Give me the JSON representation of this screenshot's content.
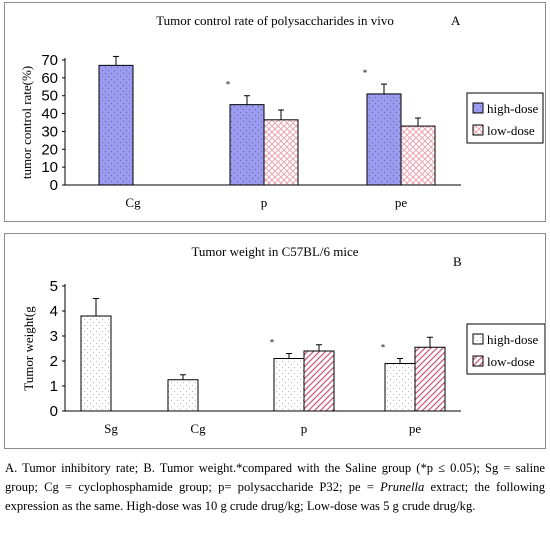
{
  "chart_data": [
    {
      "type": "bar",
      "title": "Tumor control rate of polysaccharides in vivo",
      "panel_label": "A",
      "ylabel": "tumor control rate(%)",
      "ylim": [
        0,
        70
      ],
      "yticks": [
        0,
        10,
        20,
        30,
        40,
        50,
        60,
        70
      ],
      "categories": [
        "Cg",
        "p",
        "pe"
      ],
      "legend_position": "right",
      "series": [
        {
          "name": "high-dose",
          "color": "#9b9cf1",
          "pattern": "dots",
          "values": [
            67,
            45,
            51
          ],
          "errors": [
            5,
            5,
            5.5
          ]
        },
        {
          "name": "low-dose",
          "color": "#e9a7b3",
          "pattern": "crosshatch",
          "values": [
            null,
            36.5,
            33
          ],
          "errors": [
            null,
            5.5,
            4.5
          ]
        }
      ],
      "significance": [
        "",
        "*",
        "*"
      ]
    },
    {
      "type": "bar",
      "title": "Tumor weight in C57BL/6 mice",
      "panel_label": "B",
      "ylabel": "Tumor weight(g",
      "ylim": [
        0,
        5
      ],
      "yticks": [
        0,
        1,
        2,
        3,
        4,
        5
      ],
      "categories": [
        "Sg",
        "Cg",
        "p",
        "pe"
      ],
      "legend_position": "right",
      "series": [
        {
          "name": "high-dose",
          "color": "#ffffff",
          "pattern": "dots",
          "values": [
            3.8,
            1.25,
            2.1,
            1.9
          ],
          "errors": [
            0.7,
            0.2,
            0.2,
            0.2
          ]
        },
        {
          "name": "low-dose",
          "color": "#c9577a",
          "pattern": "diagonal",
          "values": [
            null,
            null,
            2.4,
            2.55
          ],
          "errors": [
            null,
            null,
            0.25,
            0.4
          ]
        }
      ],
      "significance": [
        "",
        "",
        "*",
        "*"
      ]
    }
  ],
  "caption": {
    "part1": "A. Tumor inhibitory rate; B. Tumor weight.*compared with the Saline group (*p ≤ 0.05); Sg = saline group; Cg = cyclophosphamide group; p= polysaccharide P32; pe = ",
    "italic": "Prunella",
    "part2": " extract; the following expression as the same. High-dose was 10 g crude drug/kg; Low-dose was 5 g crude drug/kg."
  }
}
